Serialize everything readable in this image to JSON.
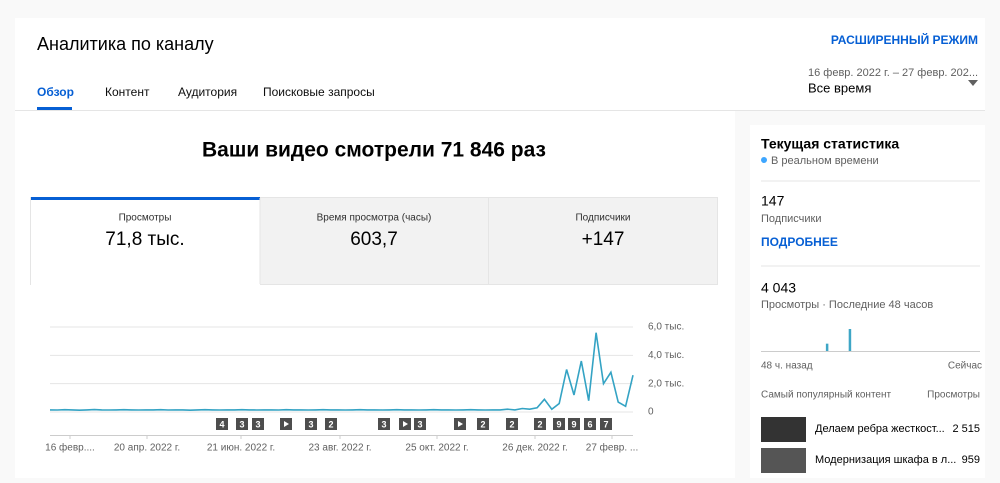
{
  "header": {
    "title": "Аналитика по каналу",
    "advanced_mode": "РАСШИРЕННЫЙ РЕЖИМ",
    "tabs": [
      "Обзор",
      "Контент",
      "Аудитория",
      "Поисковые запросы"
    ],
    "date_range": "16 февр. 2022 г. – 27 февр. 202...",
    "period": "Все время"
  },
  "summary": {
    "headline": "Ваши видео смотрели 71 846 раз",
    "metrics": [
      {
        "label": "Просмотры",
        "value": "71,8 тыс."
      },
      {
        "label": "Время просмотра (часы)",
        "value": "603,7"
      },
      {
        "label": "Подписчики",
        "value": "+147"
      }
    ]
  },
  "chart_data": {
    "type": "line",
    "color": "#34a3c4",
    "grid": true,
    "ylim": [
      0,
      6000
    ],
    "yticks": [
      {
        "value": 6000,
        "label": "6,0 тыс."
      },
      {
        "value": 4000,
        "label": "4,0 тыс."
      },
      {
        "value": 2000,
        "label": "2,0 тыс."
      },
      0
    ],
    "values": [
      150,
      140,
      160,
      150,
      130,
      150,
      170,
      150,
      140,
      150,
      160,
      150,
      140,
      150,
      150,
      160,
      140,
      150,
      150,
      130,
      150,
      160,
      150,
      140,
      150,
      150,
      160,
      150,
      140,
      150,
      150,
      140,
      160,
      150,
      150,
      140,
      150,
      160,
      150,
      150,
      140,
      150,
      160,
      150,
      150,
      140,
      150,
      160,
      150,
      150,
      140,
      150,
      160,
      150,
      150,
      140,
      150,
      160,
      150,
      140,
      150,
      150,
      200,
      150,
      250,
      200,
      300,
      900,
      200,
      600,
      3000,
      1200,
      3600,
      800,
      5600,
      2000,
      2800,
      700,
      400,
      2600
    ],
    "x_labels": [
      "16 февр....",
      "20 апр. 2022 г.",
      "21 июн. 2022 г.",
      "23 авг. 2022 г.",
      "25 окт. 2022 г.",
      "26 дек. 2022 г.",
      "27 февр. ..."
    ],
    "video_markers": [
      "4",
      "3",
      "3",
      null,
      "3",
      "2",
      "3",
      null,
      "3",
      null,
      "2",
      "2",
      "2",
      "9",
      "9",
      "6",
      "7"
    ]
  },
  "realtime": {
    "title": "Текущая статистика",
    "subtitle": "В реальном времени",
    "subscribers": {
      "value": "147",
      "label": "Подписчики",
      "link": "ПОДРОБНЕЕ"
    },
    "views": {
      "value": "4 043",
      "label": "Просмотры · Последние 48 часов"
    },
    "mini_chart": {
      "type": "bar",
      "values": [
        0,
        0,
        0,
        0,
        0,
        0,
        0,
        0,
        0,
        0,
        0,
        0,
        0,
        0,
        1,
        0,
        0,
        0,
        0,
        3,
        0,
        0,
        0,
        0,
        0,
        0,
        0,
        0,
        0,
        0,
        0,
        0,
        0,
        0,
        0,
        0,
        0,
        0,
        0,
        0,
        0,
        0,
        0,
        0,
        0,
        0,
        0,
        0
      ],
      "start_label": "48 ч. назад",
      "end_label": "Сейчас"
    },
    "top_content": {
      "heading": "Самый популярный контент",
      "views_heading": "Просмотры",
      "rows": [
        {
          "title": "Делаем ребра жесткост...",
          "views": "2 515"
        },
        {
          "title": "Модернизация шкафа в л...",
          "views": "959"
        }
      ]
    }
  }
}
